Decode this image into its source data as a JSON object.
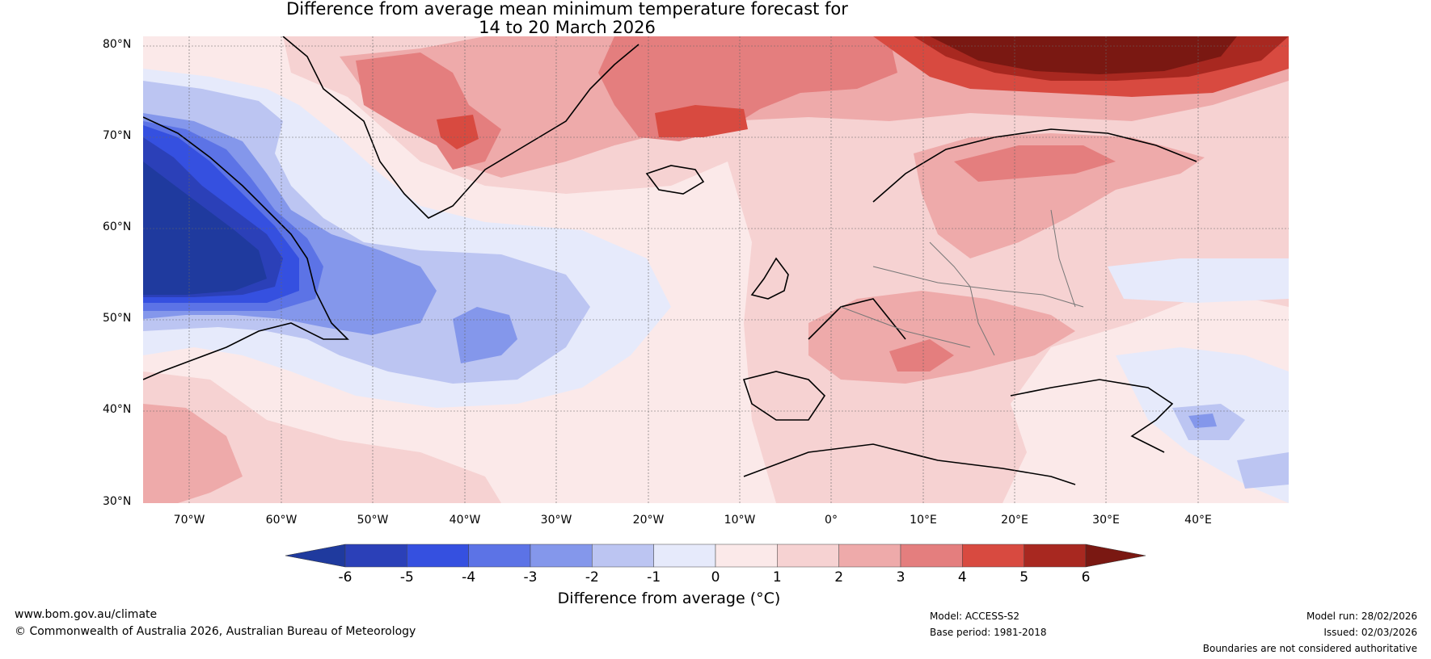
{
  "title": {
    "line1": "Difference from average mean minimum temperature forecast for",
    "line2": "14 to 20 March 2026"
  },
  "axes": {
    "lat_labels": [
      "80°N",
      "70°N",
      "60°N",
      "50°N",
      "40°N",
      "30°N"
    ],
    "lon_labels": [
      "70°W",
      "60°W",
      "50°W",
      "40°W",
      "30°W",
      "20°W",
      "10°W",
      "0°",
      "10°E",
      "20°E",
      "30°E",
      "40°E"
    ]
  },
  "colorbar": {
    "ticks": [
      "-6",
      "-5",
      "-4",
      "-3",
      "-2",
      "-1",
      "0",
      "1",
      "2",
      "3",
      "4",
      "5",
      "6"
    ],
    "label": "Difference from average (°C)",
    "colors": [
      "#1f3a9e",
      "#2b40b8",
      "#3550e0",
      "#5c73e6",
      "#8497eb",
      "#bcc5f2",
      "#e6eafb",
      "#fbe9e9",
      "#f6d2d2",
      "#eeaaaa",
      "#e47e7e",
      "#d84a40",
      "#a82820",
      "#7a1812"
    ]
  },
  "footer": {
    "website": "www.bom.gov.au/climate",
    "copyright": "© Commonwealth of Australia 2026, Australian Bureau of Meteorology",
    "model": "Model: ACCESS-S2",
    "base_period": "Base period: 1981-2018",
    "model_run": "Model run: 28/02/2026",
    "issued": "Issued: 02/03/2026",
    "disclaimer": "Boundaries are not considered authoritative"
  }
}
